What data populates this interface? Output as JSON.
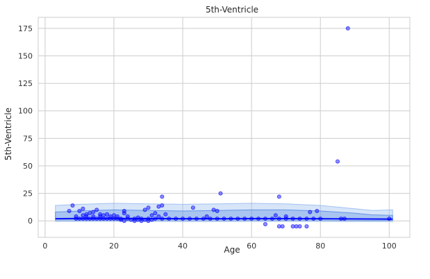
{
  "chart_data": {
    "type": "scatter",
    "title": "5th-Ventricle",
    "xlabel": "Age",
    "ylabel": "5th-Ventricle",
    "xlim": [
      -2,
      106
    ],
    "ylim": [
      -15,
      185
    ],
    "xticks": [
      0,
      20,
      40,
      60,
      80,
      100
    ],
    "yticks": [
      0,
      25,
      50,
      75,
      100,
      125,
      150,
      175
    ],
    "grid": true,
    "colors": {
      "points": "#0000ff",
      "fit_line": "#0000ff",
      "band_inner": "#4f86e0",
      "band_outer": "#8db5ee"
    },
    "bands": {
      "x": [
        3,
        10,
        20,
        30,
        40,
        50,
        60,
        70,
        80,
        90,
        95,
        101
      ],
      "center": [
        2,
        2.2,
        2.2,
        2.1,
        2.0,
        2.0,
        2.1,
        2.1,
        2.0,
        1.8,
        1.7,
        1.6
      ],
      "inner_upper": [
        8,
        9,
        10,
        9.5,
        9,
        9.5,
        10,
        10,
        9,
        7,
        5.5,
        5
      ],
      "inner_lower": [
        0.8,
        0.9,
        0.9,
        0.8,
        0.8,
        0.8,
        0.8,
        0.8,
        0.8,
        0.6,
        0.5,
        0.5
      ],
      "outer_upper": [
        14,
        15,
        16,
        15.5,
        15,
        15.5,
        16,
        15.5,
        14,
        11,
        9.5,
        10
      ],
      "outer_lower": [
        -0.5,
        -0.5,
        -0.4,
        -0.5,
        -0.6,
        -0.6,
        -0.5,
        -0.5,
        -0.5,
        -0.6,
        -0.6,
        -0.6
      ]
    },
    "points": [
      {
        "x": 88,
        "y": 175
      },
      {
        "x": 85,
        "y": 54
      },
      {
        "x": 51,
        "y": 25
      },
      {
        "x": 34,
        "y": 22
      },
      {
        "x": 68,
        "y": 22
      },
      {
        "x": 8,
        "y": 14
      },
      {
        "x": 33,
        "y": 13
      },
      {
        "x": 34,
        "y": 14
      },
      {
        "x": 43,
        "y": 12
      },
      {
        "x": 49,
        "y": 10
      },
      {
        "x": 50,
        "y": 9
      },
      {
        "x": 30,
        "y": 12
      },
      {
        "x": 29,
        "y": 10
      },
      {
        "x": 11,
        "y": 11
      },
      {
        "x": 10,
        "y": 9
      },
      {
        "x": 15,
        "y": 10
      },
      {
        "x": 14,
        "y": 8
      },
      {
        "x": 7,
        "y": 9
      },
      {
        "x": 77,
        "y": 8
      },
      {
        "x": 79,
        "y": 9
      },
      {
        "x": 23,
        "y": 9
      },
      {
        "x": 23,
        "y": 7
      },
      {
        "x": 32,
        "y": 7
      },
      {
        "x": 35,
        "y": 6
      },
      {
        "x": 12,
        "y": 6
      },
      {
        "x": 13,
        "y": 7
      },
      {
        "x": 16,
        "y": 6
      },
      {
        "x": 18,
        "y": 6
      },
      {
        "x": 11,
        "y": 5
      },
      {
        "x": 17,
        "y": 5
      },
      {
        "x": 20,
        "y": 5
      },
      {
        "x": 31,
        "y": 5
      },
      {
        "x": 33,
        "y": 4
      },
      {
        "x": 47,
        "y": 4
      },
      {
        "x": 67,
        "y": 5
      },
      {
        "x": 70,
        "y": 4
      },
      {
        "x": 9,
        "y": 4
      },
      {
        "x": 12,
        "y": 4
      },
      {
        "x": 14,
        "y": 4
      },
      {
        "x": 16,
        "y": 4
      },
      {
        "x": 19,
        "y": 4
      },
      {
        "x": 21,
        "y": 4
      },
      {
        "x": 24,
        "y": 4
      },
      {
        "x": 27,
        "y": 3
      },
      {
        "x": 9,
        "y": 2
      },
      {
        "x": 10,
        "y": 2
      },
      {
        "x": 11,
        "y": 2
      },
      {
        "x": 12,
        "y": 2
      },
      {
        "x": 13,
        "y": 2
      },
      {
        "x": 14,
        "y": 2
      },
      {
        "x": 15,
        "y": 2
      },
      {
        "x": 16,
        "y": 2
      },
      {
        "x": 17,
        "y": 2
      },
      {
        "x": 18,
        "y": 2
      },
      {
        "x": 19,
        "y": 2
      },
      {
        "x": 20,
        "y": 2
      },
      {
        "x": 21,
        "y": 2
      },
      {
        "x": 22,
        "y": 2
      },
      {
        "x": 24,
        "y": 2
      },
      {
        "x": 26,
        "y": 2
      },
      {
        "x": 28,
        "y": 2
      },
      {
        "x": 30,
        "y": 2
      },
      {
        "x": 32,
        "y": 2
      },
      {
        "x": 34,
        "y": 2
      },
      {
        "x": 36,
        "y": 2
      },
      {
        "x": 38,
        "y": 2
      },
      {
        "x": 40,
        "y": 2
      },
      {
        "x": 42,
        "y": 2
      },
      {
        "x": 44,
        "y": 2
      },
      {
        "x": 46,
        "y": 2
      },
      {
        "x": 48,
        "y": 2
      },
      {
        "x": 50,
        "y": 2
      },
      {
        "x": 52,
        "y": 2
      },
      {
        "x": 54,
        "y": 2
      },
      {
        "x": 56,
        "y": 2
      },
      {
        "x": 58,
        "y": 2
      },
      {
        "x": 60,
        "y": 2
      },
      {
        "x": 62,
        "y": 2
      },
      {
        "x": 64,
        "y": 2
      },
      {
        "x": 66,
        "y": 2
      },
      {
        "x": 68,
        "y": 2
      },
      {
        "x": 70,
        "y": 2
      },
      {
        "x": 72,
        "y": 2
      },
      {
        "x": 74,
        "y": 2
      },
      {
        "x": 76,
        "y": 2
      },
      {
        "x": 78,
        "y": 2
      },
      {
        "x": 80,
        "y": 2
      },
      {
        "x": 86,
        "y": 2
      },
      {
        "x": 87,
        "y": 2
      },
      {
        "x": 100,
        "y": 2
      },
      {
        "x": 22,
        "y": 1
      },
      {
        "x": 25,
        "y": 1
      },
      {
        "x": 27,
        "y": 1
      },
      {
        "x": 29,
        "y": 1
      },
      {
        "x": 31,
        "y": 1
      },
      {
        "x": 23,
        "y": 0
      },
      {
        "x": 26,
        "y": 0
      },
      {
        "x": 28,
        "y": 0
      },
      {
        "x": 30,
        "y": 0
      },
      {
        "x": 64,
        "y": -3
      },
      {
        "x": 68,
        "y": -5
      },
      {
        "x": 69,
        "y": -5
      },
      {
        "x": 72,
        "y": -5
      },
      {
        "x": 73,
        "y": -5
      },
      {
        "x": 74,
        "y": -5
      },
      {
        "x": 76,
        "y": -5
      }
    ]
  }
}
